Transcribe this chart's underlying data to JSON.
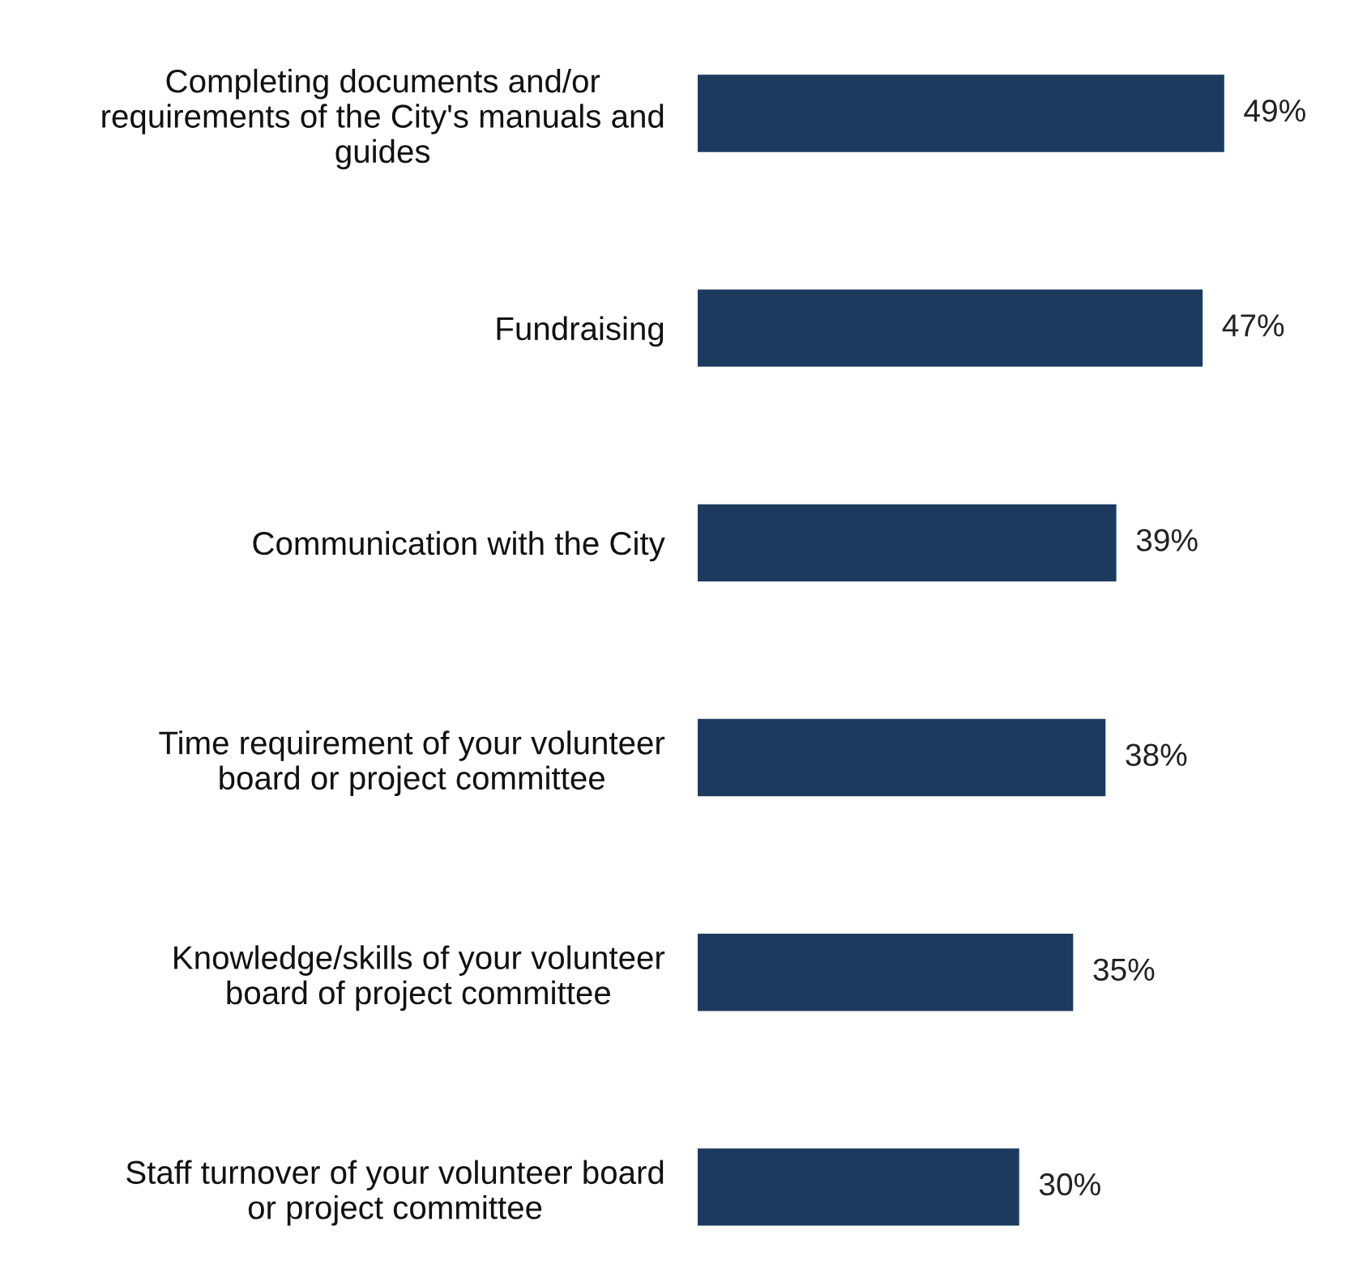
{
  "chart_data": {
    "type": "bar",
    "orientation": "horizontal",
    "categories": [
      "Completing documents and/or\nrequirements of the City's manuals and\nguides",
      "Fundraising",
      "Communication with the City",
      "Time requirement of your volunteer\nboard or project committee",
      "Knowledge/skills of your volunteer\nboard of project committee",
      "Staff turnover of your volunteer board\nor project committee"
    ],
    "values": [
      49,
      47,
      39,
      38,
      35,
      30
    ],
    "value_labels": [
      "49%",
      "47%",
      "39%",
      "38%",
      "35%",
      "30%"
    ],
    "color": "#1c3a5e",
    "grid": false,
    "legend": false
  }
}
